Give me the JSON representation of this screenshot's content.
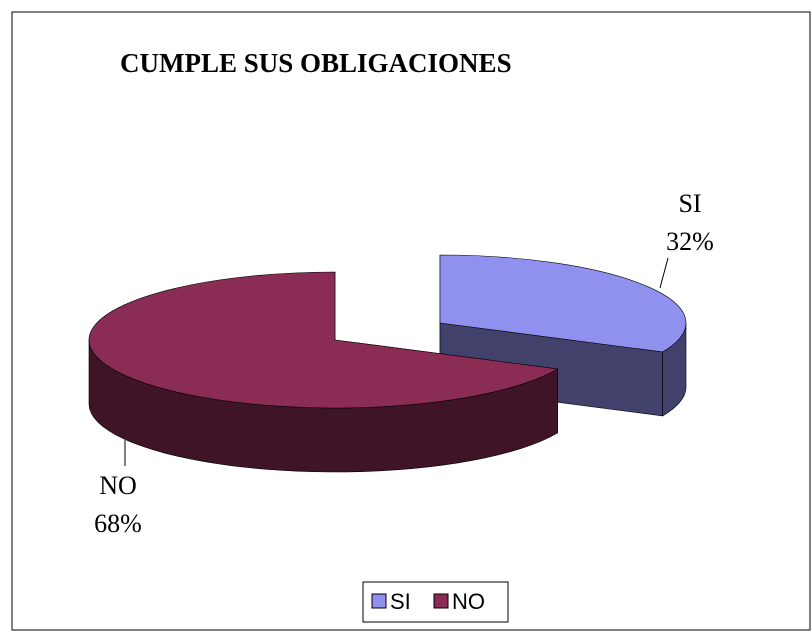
{
  "chart_data": {
    "type": "pie",
    "title": "CUMPLE SUS OBLIGACIONES",
    "categories": [
      "SI",
      "NO"
    ],
    "values": [
      32,
      68
    ],
    "value_labels": [
      "32%",
      "68%"
    ],
    "colors": [
      "#9090ee",
      "#8b2c55"
    ],
    "legend": "bottom"
  }
}
